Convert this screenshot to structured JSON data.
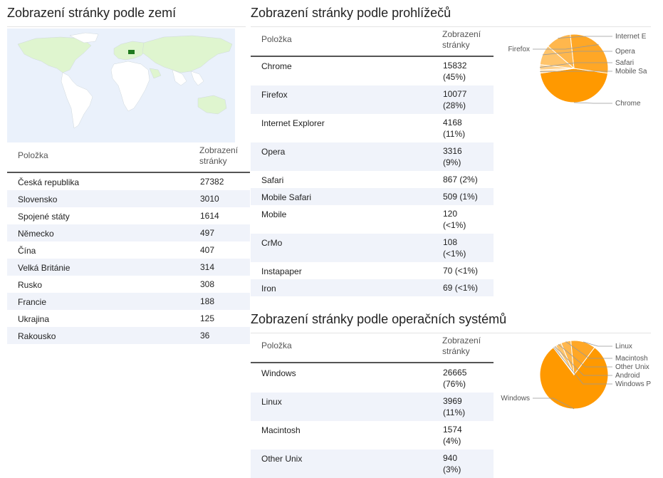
{
  "countries": {
    "title": "Zobrazení stránky podle zemí",
    "col_item": "Položka",
    "col_views": "Zobrazení stránky",
    "rows": [
      {
        "name": "Česká republika",
        "views": "27382"
      },
      {
        "name": "Slovensko",
        "views": "3010"
      },
      {
        "name": "Spojené státy",
        "views": "1614"
      },
      {
        "name": "Německo",
        "views": "497"
      },
      {
        "name": "Čína",
        "views": "407"
      },
      {
        "name": "Velká Británie",
        "views": "314"
      },
      {
        "name": "Rusko",
        "views": "308"
      },
      {
        "name": "Francie",
        "views": "188"
      },
      {
        "name": "Ukrajina",
        "views": "125"
      },
      {
        "name": "Rakousko",
        "views": "36"
      }
    ],
    "map_colors": {
      "ocean": "#eaf1fb",
      "land": "#ffffff",
      "low": "#dff5cf",
      "high": "#1f7a1f"
    }
  },
  "browsers": {
    "title": "Zobrazení stránky podle prohlížečů",
    "col_item": "Položka",
    "col_views": "Zobrazení stránky",
    "rows": [
      {
        "name": "Chrome",
        "views": "15832",
        "pct": "(45%)"
      },
      {
        "name": "Firefox",
        "views": "10077",
        "pct": "(28%)"
      },
      {
        "name": "Internet Explorer",
        "views": "4168",
        "pct": "(11%)"
      },
      {
        "name": "Opera",
        "views": "3316",
        "pct": "(9%)"
      },
      {
        "name": "Safari",
        "views": "867",
        "pct": "(2%)"
      },
      {
        "name": "Mobile Safari",
        "views": "509",
        "pct": "(1%)"
      },
      {
        "name": "Mobile",
        "views": "120",
        "pct": "(<1%)"
      },
      {
        "name": "CrMo",
        "views": "108",
        "pct": "(<1%)"
      },
      {
        "name": "Instapaper",
        "views": "70",
        "pct": "(<1%)"
      },
      {
        "name": "Iron",
        "views": "69",
        "pct": "(<1%)"
      }
    ],
    "pie_labels": [
      "Chrome",
      "Firefox",
      "Internet E",
      "Opera",
      "Safari",
      "Mobile Sa"
    ]
  },
  "os": {
    "title": "Zobrazení stránky podle operačních systémů",
    "col_item": "Položka",
    "col_views": "Zobrazení stránky",
    "rows": [
      {
        "name": "Windows",
        "views": "26665",
        "pct": "(76%)"
      },
      {
        "name": "Linux",
        "views": "3969",
        "pct": "(11%)"
      },
      {
        "name": "Macintosh",
        "views": "1574",
        "pct": "(4%)"
      },
      {
        "name": "Other Unix",
        "views": "940",
        "pct": "(3%)"
      }
    ],
    "pie_labels": [
      "Windows",
      "Linux",
      "Macintosh",
      "Other Unix",
      "Android",
      "Windows P"
    ]
  },
  "chart_data": [
    {
      "type": "pie",
      "categories": [
        "Chrome",
        "Firefox",
        "Internet Explorer",
        "Opera",
        "Safari",
        "Mobile Safari"
      ],
      "values": [
        15832,
        10077,
        4168,
        3316,
        867,
        509
      ],
      "colors": [
        "#ff9900",
        "#ffa726",
        "#ffb74d",
        "#ffc46b",
        "#ffd08a",
        "#ffdca8"
      ],
      "legend": "labels-with-leader-lines"
    },
    {
      "type": "pie",
      "categories": [
        "Windows",
        "Linux",
        "Macintosh",
        "Other Unix",
        "Android",
        "Windows P"
      ],
      "values": [
        26665,
        3969,
        1574,
        940,
        300,
        150
      ],
      "colors": [
        "#ff9900",
        "#ffa726",
        "#ffb74d",
        "#ffc46b",
        "#ffd08a",
        "#ffdca8"
      ],
      "legend": "labels-with-leader-lines"
    }
  ]
}
